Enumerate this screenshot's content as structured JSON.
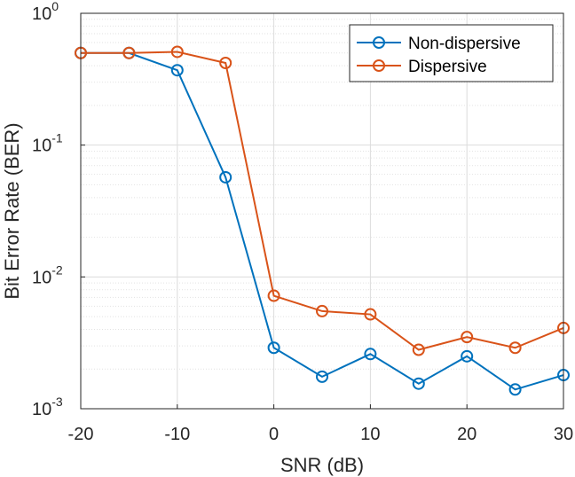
{
  "chart_data": {
    "type": "line",
    "title": "",
    "xlabel": "SNR (dB)",
    "ylabel": "Bit Error Rate (BER)",
    "xlim": [
      -20,
      30
    ],
    "ylim": [
      0.001,
      1
    ],
    "yscale": "log",
    "grid": true,
    "legend": "top-right",
    "x_ticks": [
      -20,
      -10,
      0,
      10,
      20,
      30
    ],
    "x_tick_labels": [
      "-20",
      "-10",
      "0",
      "10",
      "20",
      "30"
    ],
    "y_ticks": [
      0.001,
      0.01,
      0.1,
      1
    ],
    "y_tick_labels": [
      {
        "base": "10",
        "exp": "-3"
      },
      {
        "base": "10",
        "exp": "-2"
      },
      {
        "base": "10",
        "exp": "-1"
      },
      {
        "base": "10",
        "exp": "0"
      }
    ],
    "x": [
      -20,
      -15,
      -10,
      -5,
      0,
      5,
      10,
      15,
      20,
      25,
      30
    ],
    "series": [
      {
        "name": "Non-dispersive",
        "color": "#0072BD",
        "marker": "circle",
        "values": [
          0.5,
          0.5,
          0.37,
          0.057,
          0.0029,
          0.00175,
          0.0026,
          0.00155,
          0.0025,
          0.0014,
          0.0018
        ]
      },
      {
        "name": "Dispersive",
        "color": "#D95319",
        "marker": "circle",
        "values": [
          0.5,
          0.5,
          0.51,
          0.42,
          0.0072,
          0.0055,
          0.0052,
          0.0028,
          0.0035,
          0.0029,
          0.0041
        ]
      }
    ]
  }
}
